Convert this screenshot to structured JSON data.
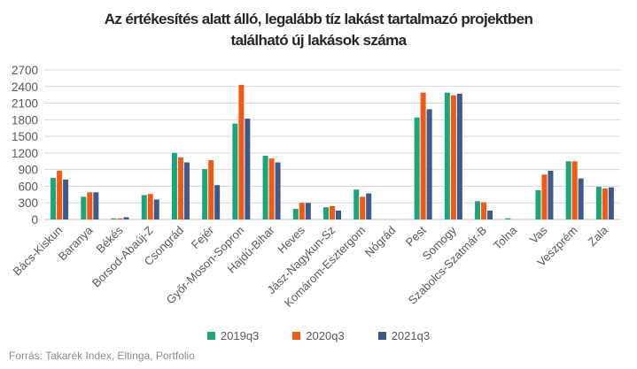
{
  "title_lines": [
    "Az értékesítés alatt álló, legalább tíz lakást tartalmazó projektben",
    "található új lakások száma"
  ],
  "source": "Forrás: Takarék Index, Eltinga, Portfolio",
  "colors": {
    "2019q3": "#1aa57a",
    "2020q3": "#f05a14",
    "2021q3": "#3d5a8a",
    "grid": "#d9d9d9",
    "axis": "#bfbfbf"
  },
  "chart_data": {
    "type": "bar",
    "title": "Az értékesítés alatt álló, legalább tíz lakást tartalmazó projektben található új lakások száma",
    "xlabel": "",
    "ylabel": "",
    "ylim": [
      0,
      2700
    ],
    "yticks": [
      0,
      300,
      600,
      900,
      1200,
      1500,
      1800,
      2100,
      2400,
      2700
    ],
    "grid": true,
    "legend": "bottom",
    "categories": [
      "Bács-Kiskun",
      "Baranya",
      "Békés",
      "Borsod-Abaúj-Z",
      "Csongrád",
      "Fejér",
      "Győr-Moson-Sopron",
      "Hajdú-Bihar",
      "Heves",
      "Jász-Nagykun-Sz",
      "Komárom-Esztergom",
      "Nógrád",
      "Pest",
      "Somogy",
      "Szabolcs-Szatmár-B",
      "Tolna",
      "Vas",
      "Veszprém",
      "Zala"
    ],
    "series": [
      {
        "name": "2019q3",
        "color": "#1aa57a",
        "values": [
          750,
          410,
          20,
          440,
          1200,
          910,
          1730,
          1150,
          190,
          220,
          540,
          0,
          1840,
          2290,
          330,
          20,
          530,
          1050,
          590
        ]
      },
      {
        "name": "2020q3",
        "color": "#f05a14",
        "values": [
          880,
          490,
          20,
          460,
          1120,
          1070,
          2430,
          1100,
          300,
          240,
          410,
          0,
          2290,
          2240,
          310,
          0,
          810,
          1050,
          560
        ]
      },
      {
        "name": "2021q3",
        "color": "#3d5a8a",
        "values": [
          720,
          490,
          40,
          360,
          1030,
          620,
          1820,
          1030,
          300,
          160,
          470,
          0,
          1990,
          2270,
          160,
          0,
          880,
          740,
          580
        ]
      }
    ]
  }
}
